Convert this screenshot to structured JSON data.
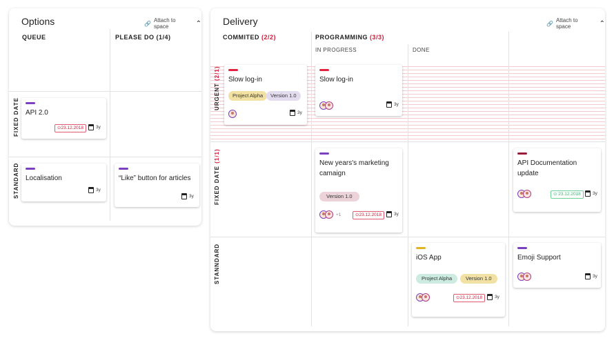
{
  "options": {
    "title": "Options",
    "attach_label": "Attach to space",
    "columns": [
      "QUEUE",
      "PLEASE DO (1/4)"
    ],
    "rows": [
      "FIXED DATE",
      "STANDARD"
    ],
    "cards": {
      "api": {
        "title": "API 2.0",
        "date": "23.12.2018",
        "age": "3y"
      },
      "localisation": {
        "title": "Localisation",
        "age": "3y"
      },
      "like": {
        "title": "“Like” button for articles",
        "age": "3y"
      }
    }
  },
  "delivery": {
    "title": "Delivery",
    "attach_label": "Attach to space",
    "col_commited": "COMMITED",
    "col_commited_count": "(2/2)",
    "col_programming": "PROGRAMMING",
    "col_programming_count": "(3/3)",
    "sub_in_progress": "IN PROGRESS",
    "sub_done": "DONE",
    "row_urgent": "URGENT",
    "row_urgent_count": "(2/1)",
    "row_fixed": "FIXED DATE",
    "row_fixed_count": "(1/1)",
    "row_standard": "STANNDARD",
    "cards": {
      "slow1": {
        "title": "Slow log-in",
        "tag1": "Project Alpha",
        "tag2": "Version 1.0",
        "age": "3y"
      },
      "slow2": {
        "title": "Slow log-in",
        "age": "3y"
      },
      "marketing": {
        "title": "New years's marketing camaign",
        "tag1": "Version 1.0",
        "extra": "+1",
        "date": "23.12.2018",
        "age": "3y"
      },
      "apidoc": {
        "title": "API Documentation update",
        "date": "23.12.2018",
        "age": "3y"
      },
      "ios": {
        "title": "iOS App",
        "tag1": "Project Alpha",
        "tag2": "Version 1.0",
        "date": "23.12.2018",
        "age": "3y"
      },
      "emoji": {
        "title": "Emoji Support",
        "age": "3y"
      }
    }
  },
  "colors": {
    "accent_purple": "#7b3fbf",
    "accent_red": "#e0233f",
    "accent_darkred": "#9b1b3a",
    "accent_yellow": "#e2b422",
    "tag_alpha": "#f1e1a3",
    "tag_version": "#e3dcef",
    "tag_version_pink": "#ecd2d9",
    "tag_alpha_green": "#cdebe0"
  }
}
